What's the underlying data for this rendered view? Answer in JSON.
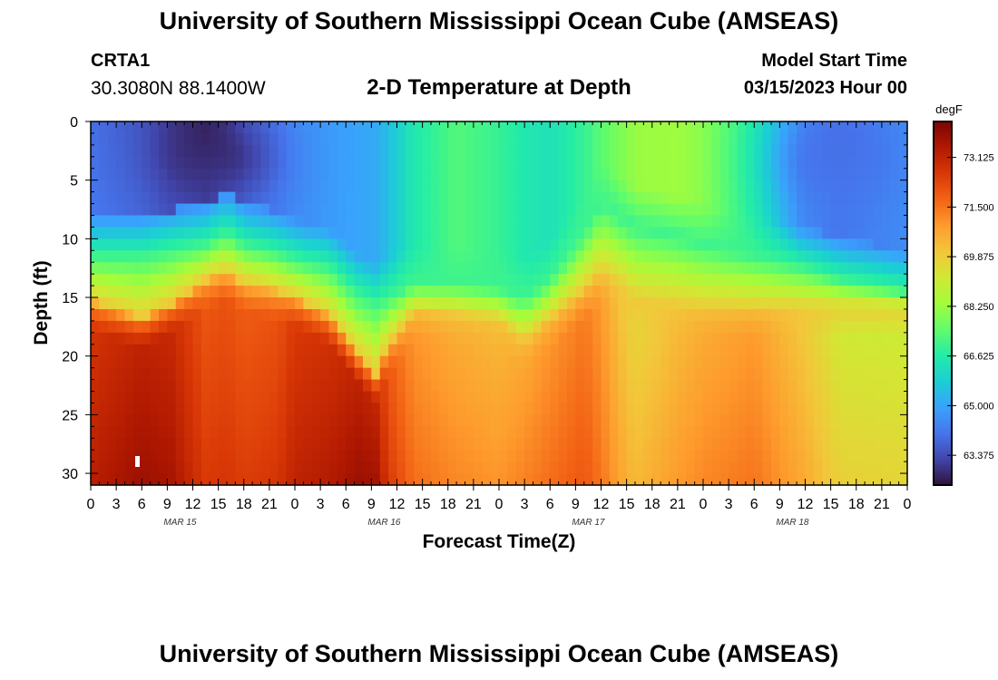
{
  "header": {
    "title": "University of Southern Mississippi Ocean Cube (AMSEAS)",
    "station_name": "CRTA1",
    "station_coords": "30.3080N  88.1400W",
    "plot_title": "2-D Temperature at Depth",
    "model_start_label": "Model Start Time",
    "model_start_value": "03/15/2023 Hour 00"
  },
  "footer": {
    "title": "University of Southern Mississippi Ocean Cube (AMSEAS)"
  },
  "chart_data": {
    "type": "heatmap",
    "xlabel": "Forecast Time(Z)",
    "ylabel": "Depth (ft)",
    "colorbar_unit": "degF",
    "x_hours_range": [
      0,
      96
    ],
    "x_tick_labels": [
      "0",
      "3",
      "6",
      "9",
      "12",
      "15",
      "18",
      "21",
      "0",
      "3",
      "6",
      "9",
      "12",
      "15",
      "18",
      "21",
      "0",
      "3",
      "6",
      "9",
      "12",
      "15",
      "18",
      "21",
      "0",
      "3",
      "6",
      "9",
      "12",
      "15",
      "18",
      "21",
      "0"
    ],
    "day_labels": [
      {
        "label": "MAR 15",
        "hour": 10.5
      },
      {
        "label": "MAR 16",
        "hour": 34.5
      },
      {
        "label": "MAR 17",
        "hour": 58.5
      },
      {
        "label": "MAR 18",
        "hour": 82.5
      }
    ],
    "y_range": [
      0,
      31
    ],
    "y_ticks": [
      0,
      5,
      10,
      15,
      20,
      25,
      30
    ],
    "colorbar_range": [
      62.4,
      74.3
    ],
    "colorbar_ticks": [
      "63.375",
      "65.000",
      "66.625",
      "68.250",
      "69.875",
      "71.500",
      "73.125"
    ],
    "colorbar_tick_values": [
      63.375,
      65.0,
      66.625,
      68.25,
      69.875,
      71.5,
      73.125
    ],
    "colors": [
      "#30123b",
      "#4145ab",
      "#4675ed",
      "#39a2fc",
      "#1bcfd4",
      "#24eca6",
      "#61fc6c",
      "#a4fc3b",
      "#d1e834",
      "#f3c63a",
      "#fe9b2d",
      "#f36315",
      "#d93806",
      "#b11901",
      "#7a0403"
    ],
    "columns_hours": [
      0,
      6,
      9.5,
      13.5,
      16,
      18,
      22,
      24,
      28,
      31.5,
      33.5,
      35,
      38,
      43,
      48,
      51,
      54,
      58,
      60,
      62,
      64,
      69,
      72,
      78,
      84,
      88,
      96
    ],
    "isotherm_depths_ft": {
      "70": [
        15.3,
        16.8,
        15.5,
        13.5,
        12.9,
        13.8,
        14.5,
        15.0,
        16.5,
        20.0,
        21.5,
        19.0,
        16.2,
        16.5,
        17.0,
        18.8,
        16.8,
        14.5,
        13.0,
        14.0,
        15.5,
        15.8,
        16.0,
        16.0,
        16.0,
        16.0,
        16.0
      ],
      "67": [
        11.5,
        11.5,
        11.0,
        10.5,
        9.5,
        10.5,
        11.2,
        11.8,
        12.5,
        14.8,
        15.5,
        15.0,
        13.8,
        13.8,
        14.2,
        15.0,
        13.5,
        9.5,
        7.0,
        8.0,
        9.0,
        9.8,
        10.5,
        11.5,
        12.5,
        13.5,
        14.5
      ]
    },
    "surface_temps_degF": [
      64.0,
      63.6,
      63.1,
      62.7,
      63.1,
      63.7,
      64.2,
      64.5,
      64.8,
      65.0,
      65.1,
      65.5,
      66.5,
      67.3,
      66.9,
      66.5,
      66.3,
      66.9,
      67.4,
      67.8,
      68.2,
      68.3,
      68.0,
      66.6,
      64.4,
      64.0,
      64.5
    ],
    "cold_core": [
      {
        "hour": 14.5,
        "depth_ft": 3.5,
        "temp": 62.6
      },
      {
        "hour": 87.5,
        "depth_ft": 3.5,
        "temp": 64.0
      }
    ],
    "bottom_temps_degF": [
      73.3,
      73.8,
      73.6,
      72.6,
      72.7,
      72.5,
      72.7,
      73.2,
      73.4,
      73.8,
      73.7,
      72.6,
      71.6,
      71.2,
      71.0,
      71.3,
      71.6,
      72.0,
      71.5,
      70.8,
      70.3,
      70.9,
      71.2,
      71.5,
      70.6,
      69.8,
      69.7
    ]
  }
}
